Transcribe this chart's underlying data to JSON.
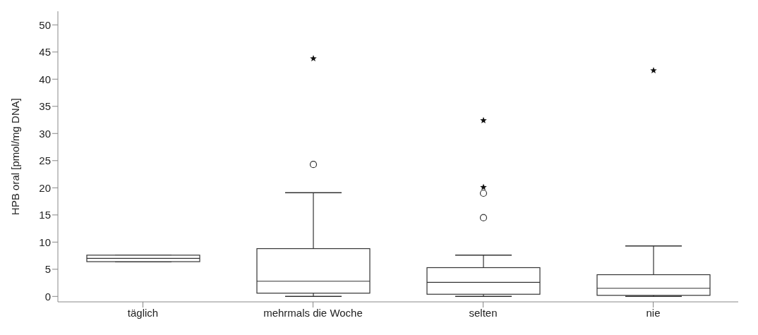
{
  "chart_data": {
    "type": "box",
    "ylabel": "HPB oral [pmol/mg DNA]",
    "categories": [
      "täglich",
      "mehrmals die Woche",
      "selten",
      "nie"
    ],
    "boxes": [
      {
        "low": 6.4,
        "q1": 6.4,
        "median": 7.0,
        "q3": 7.6,
        "high": 7.6
      },
      {
        "low": 0,
        "q1": 0.6,
        "median": 2.8,
        "q3": 8.8,
        "high": 19.1,
        "outliers": [
          24.3,
          43.8
        ]
      },
      {
        "low": 0,
        "q1": 0.4,
        "median": 2.6,
        "q3": 5.3,
        "high": 7.6,
        "outliers": [
          14.5,
          19.0,
          20.1,
          32.4
        ]
      },
      {
        "low": 0,
        "q1": 0.2,
        "median": 1.5,
        "q3": 4.0,
        "high": 9.3,
        "outliers": [
          41.6
        ]
      }
    ],
    "ylim": [
      -1,
      52.5
    ],
    "yticks": [
      0,
      5,
      10,
      15,
      20,
      25,
      30,
      35,
      40,
      45,
      50
    ],
    "grid": false,
    "legend": false
  }
}
